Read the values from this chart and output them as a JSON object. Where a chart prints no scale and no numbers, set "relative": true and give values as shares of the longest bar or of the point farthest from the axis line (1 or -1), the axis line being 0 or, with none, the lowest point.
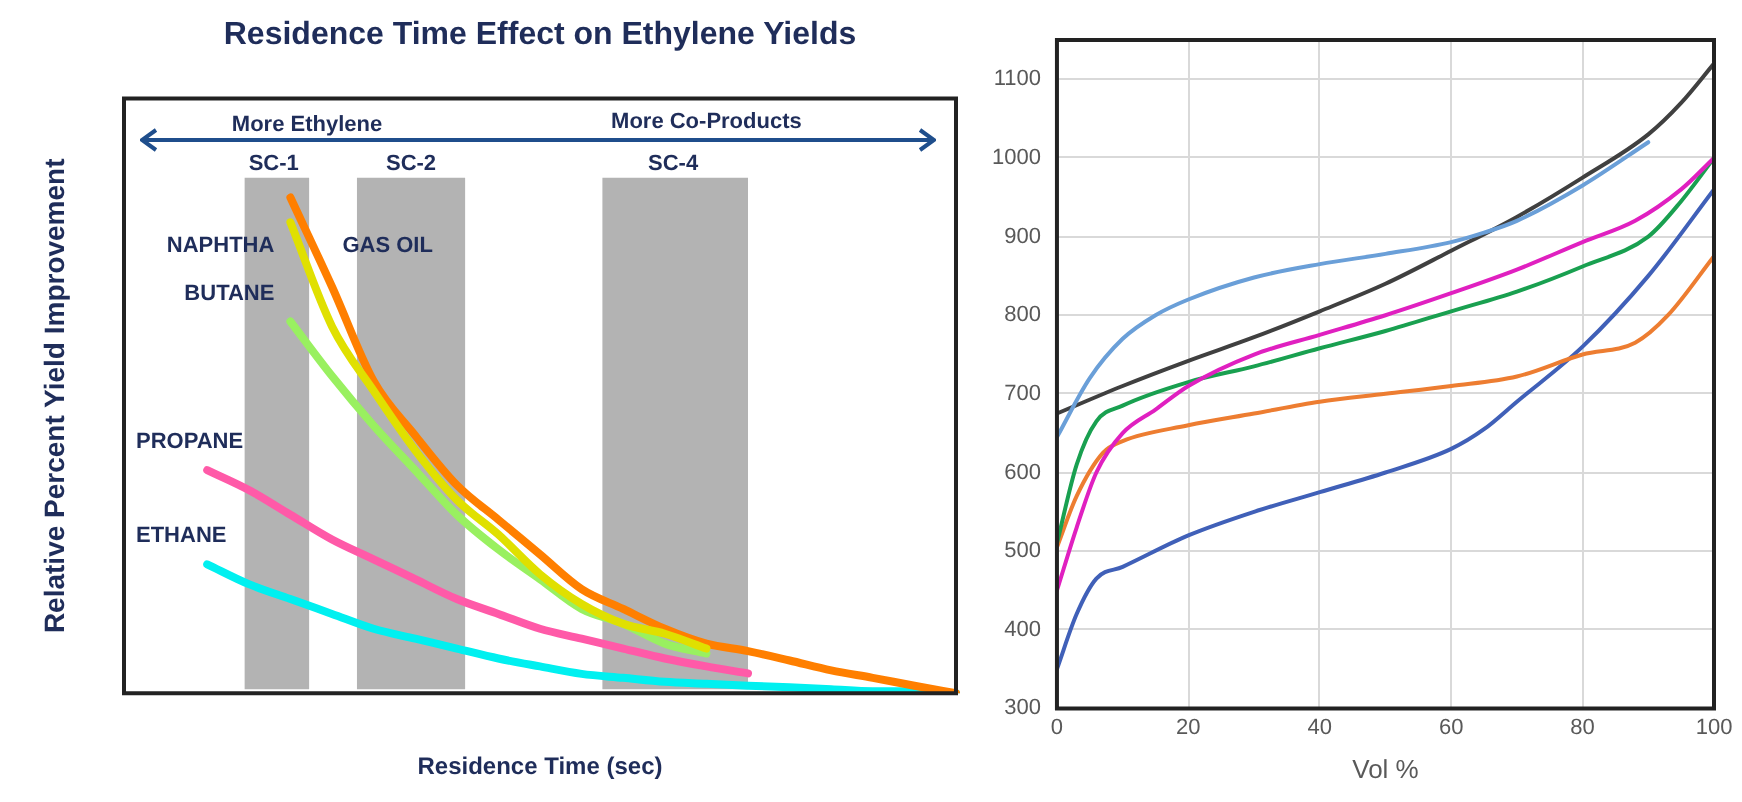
{
  "chart_data": [
    {
      "type": "line",
      "title": "Residence Time Effect on Ethylene Yields",
      "xlabel": "Residence Time (sec)",
      "ylabel": "Relative Percent Yield Improvement",
      "relative": true,
      "tick_labels": false,
      "marker": "none",
      "annotations": [
        "More Ethylene",
        "More Co-Products",
        "SC-1",
        "SC-2",
        "SC-4"
      ],
      "categories": [
        null,
        null,
        null,
        null,
        null,
        null,
        null,
        null,
        null,
        null,
        null,
        null,
        null,
        null,
        null,
        null,
        null,
        null,
        null,
        null,
        null
      ],
      "series": [
        {
          "name": "NAPHTHA",
          "color": "#e0e000",
          "values": [
            null,
            null,
            null,
            null,
            0.95,
            0.74,
            0.61,
            0.49,
            0.39,
            0.32,
            0.24,
            0.18,
            0.14,
            0.12,
            0.09,
            null,
            null,
            null,
            null,
            null,
            null
          ]
        },
        {
          "name": "GAS OIL",
          "color": "#ff7f00",
          "values": [
            null,
            null,
            null,
            null,
            1.0,
            0.82,
            0.63,
            0.52,
            0.42,
            0.35,
            0.28,
            0.21,
            0.17,
            0.13,
            0.1,
            0.085,
            0.066,
            0.046,
            0.031,
            0.015,
            0
          ]
        },
        {
          "name": "BUTANE",
          "color": "#99f060",
          "values": [
            null,
            null,
            null,
            null,
            0.75,
            0.64,
            0.54,
            0.45,
            0.36,
            0.29,
            0.23,
            0.17,
            0.14,
            0.1,
            0.08,
            null,
            null,
            null,
            null,
            null,
            null
          ]
        },
        {
          "name": "PROPANE",
          "color": "#ff5aa8",
          "values": [
            null,
            null,
            0.45,
            0.41,
            0.36,
            0.31,
            0.27,
            0.23,
            0.19,
            0.16,
            0.13,
            0.11,
            0.09,
            0.07,
            0.054,
            0.04,
            null,
            null,
            null,
            null,
            null
          ]
        },
        {
          "name": "ETHANE",
          "color": "#00f0f0",
          "values": [
            null,
            null,
            0.26,
            0.22,
            0.19,
            0.16,
            0.13,
            0.11,
            0.09,
            0.07,
            0.054,
            0.039,
            0.031,
            0.023,
            0.019,
            0.015,
            0.012,
            0.008,
            0.004,
            0.004,
            0
          ]
        }
      ]
    },
    {
      "type": "line",
      "xlabel": "Vol %",
      "xlim": [
        0,
        100
      ],
      "xticks": [
        0,
        20,
        40,
        60,
        80,
        100
      ],
      "ylim": [
        300,
        1150
      ],
      "yticks": [
        300,
        400,
        500,
        600,
        700,
        800,
        900,
        1000,
        1100
      ],
      "grid": true,
      "marker": "none",
      "series": [
        {
          "color": "#6a9fd8",
          "x": [
            0,
            5,
            10,
            15,
            20,
            30,
            40,
            50,
            60,
            65,
            70,
            80,
            90
          ],
          "values": [
            645,
            720,
            770,
            800,
            820,
            848,
            865,
            878,
            893,
            905,
            920,
            965,
            1020
          ]
        },
        {
          "color": "#404040",
          "x": [
            0,
            10,
            20,
            30,
            40,
            50,
            60,
            70,
            80,
            90,
            95,
            100
          ],
          "values": [
            675,
            710,
            742,
            772,
            805,
            840,
            882,
            925,
            975,
            1030,
            1070,
            1120
          ]
        },
        {
          "color": "#e020c0",
          "x": [
            0,
            3,
            6,
            10,
            15,
            20,
            30,
            40,
            50,
            60,
            70,
            80,
            88,
            95,
            100
          ],
          "values": [
            450,
            530,
            600,
            650,
            680,
            710,
            750,
            775,
            800,
            828,
            858,
            893,
            920,
            960,
            1000
          ]
        },
        {
          "color": "#19a050",
          "x": [
            0,
            3,
            6,
            10,
            20,
            30,
            40,
            50,
            60,
            70,
            80,
            90,
            95,
            100
          ],
          "values": [
            510,
            610,
            665,
            685,
            715,
            735,
            758,
            780,
            805,
            830,
            862,
            900,
            945,
            1000
          ]
        },
        {
          "color": "#ed7d31",
          "x": [
            0,
            3,
            7,
            10,
            20,
            30,
            40,
            50,
            60,
            70,
            80,
            88,
            93,
            100
          ],
          "values": [
            505,
            570,
            625,
            640,
            660,
            675,
            690,
            700,
            710,
            722,
            750,
            765,
            800,
            875
          ]
        },
        {
          "color": "#4060b8",
          "x": [
            0,
            3,
            6,
            10,
            20,
            30,
            40,
            50,
            60,
            65,
            70,
            80,
            90,
            100
          ],
          "values": [
            350,
            420,
            465,
            480,
            520,
            550,
            575,
            600,
            630,
            655,
            690,
            760,
            850,
            960
          ]
        }
      ]
    }
  ]
}
